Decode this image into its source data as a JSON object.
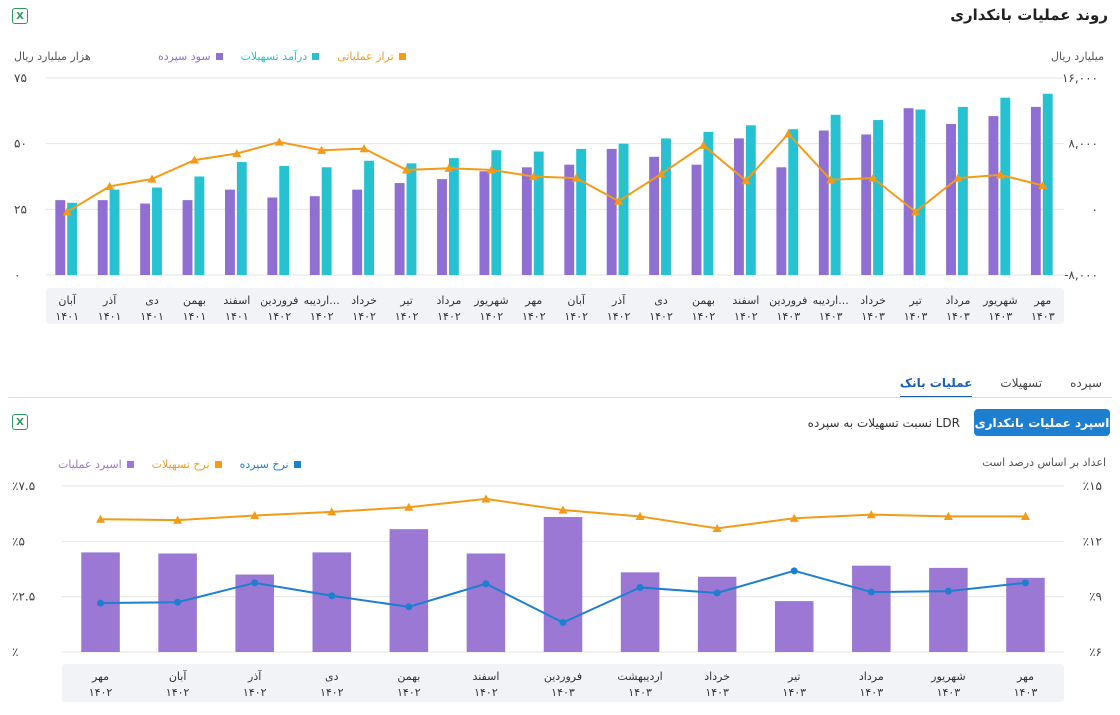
{
  "top": {
    "title": "روند عملیات بانکداری",
    "unit_left": "هزار میلیارد ریال",
    "unit_right": "میلیارد ریال",
    "legend": [
      {
        "label": "تراز عملیاتی",
        "color": "#f29b18"
      },
      {
        "label": "درآمد تسهیلات",
        "color": "#26c2d1"
      },
      {
        "label": "سود سپرده",
        "color": "#8f6fd1"
      }
    ],
    "excel_icon": "excel-icon"
  },
  "tabs": [
    "سپرده",
    "تسهیلات",
    "عملیات بانک"
  ],
  "active_tab": "عملیات بانک",
  "bottom": {
    "primary_button": "اسپرد عملیات بانکداری",
    "secondary_button": "نسبت تسهیلات به سپرده LDR",
    "unit": "اعداد بر اساس درصد است",
    "legend": [
      {
        "label": "اسپرد عملیات",
        "color": "#9a78d4"
      },
      {
        "label": "نرخ تسهیلات",
        "color": "#f29b18"
      },
      {
        "label": "نرخ سپرده",
        "color": "#1e7fd1"
      }
    ]
  },
  "chart_data": [
    {
      "type": "bar",
      "title": "روند عملیات بانکداری",
      "categories": [
        [
          "آبان",
          "۱۴۰۱"
        ],
        [
          "آذر",
          "۱۴۰۱"
        ],
        [
          "دی",
          "۱۴۰۱"
        ],
        [
          "بهمن",
          "۱۴۰۱"
        ],
        [
          "اسفند",
          "۱۴۰۱"
        ],
        [
          "فروردین",
          "۱۴۰۲"
        ],
        [
          "اردیبه...",
          "۱۴۰۲"
        ],
        [
          "خرداد",
          "۱۴۰۲"
        ],
        [
          "تیر",
          "۱۴۰۲"
        ],
        [
          "مرداد",
          "۱۴۰۲"
        ],
        [
          "شهریور",
          "۱۴۰۲"
        ],
        [
          "مهر",
          "۱۴۰۲"
        ],
        [
          "آبان",
          "۱۴۰۲"
        ],
        [
          "آذر",
          "۱۴۰۲"
        ],
        [
          "دی",
          "۱۴۰۲"
        ],
        [
          "بهمن",
          "۱۴۰۲"
        ],
        [
          "اسفند",
          "۱۴۰۲"
        ],
        [
          "فروردین",
          "۱۴۰۳"
        ],
        [
          "اردیبه...",
          "۱۴۰۳"
        ],
        [
          "خرداد",
          "۱۴۰۳"
        ],
        [
          "تیر",
          "۱۴۰۳"
        ],
        [
          "مرداد",
          "۱۴۰۳"
        ],
        [
          "شهریور",
          "۱۴۰۳"
        ],
        [
          "مهر",
          "۱۴۰۳"
        ]
      ],
      "series": [
        {
          "name": "سود سپرده",
          "kind": "bar",
          "axis": "left",
          "color": "#8f6fd1",
          "values": [
            28.5,
            28.5,
            27.2,
            28.5,
            32.5,
            29.5,
            30,
            32.5,
            35,
            36.5,
            39.5,
            41,
            42,
            48,
            45,
            42,
            52,
            41,
            55,
            53.5,
            63.5,
            57.5,
            60.5,
            64
          ]
        },
        {
          "name": "درآمد تسهیلات",
          "kind": "bar",
          "axis": "left",
          "color": "#26c2d1",
          "values": [
            27.5,
            32.5,
            33.3,
            37.5,
            43,
            41.5,
            41,
            43.5,
            42.5,
            44.5,
            47.5,
            47,
            48,
            50,
            52,
            54.5,
            57,
            55.5,
            61,
            59,
            63,
            64,
            67.5,
            69
          ]
        },
        {
          "name": "تراز عملیاتی",
          "kind": "line",
          "axis": "right",
          "color": "#f29b18",
          "values": [
            -300,
            2800,
            3700,
            6000,
            6800,
            8200,
            7200,
            7400,
            4800,
            5000,
            4800,
            4000,
            3800,
            1000,
            4300,
            7800,
            3500,
            9200,
            3600,
            3800,
            -300,
            3800,
            4200,
            2900
          ]
        }
      ],
      "ylim_left": [
        0,
        75
      ],
      "yticks_left": [
        "۰",
        "۲۵",
        "۵۰",
        "۷۵"
      ],
      "ylim_right": [
        -8000,
        16000
      ],
      "yticks_right": [
        "-۸,۰۰۰",
        "۰",
        "۸,۰۰۰",
        "۱۶,۰۰۰"
      ],
      "grid": true
    },
    {
      "type": "bar",
      "title": "اسپرد عملیات بانکداری",
      "categories": [
        [
          "مهر",
          "۱۴۰۲"
        ],
        [
          "آبان",
          "۱۴۰۲"
        ],
        [
          "آذر",
          "۱۴۰۲"
        ],
        [
          "دی",
          "۱۴۰۲"
        ],
        [
          "بهمن",
          "۱۴۰۲"
        ],
        [
          "اسفند",
          "۱۴۰۲"
        ],
        [
          "فروردین",
          "۱۴۰۳"
        ],
        [
          "اردیبهشت",
          "۱۴۰۳"
        ],
        [
          "خرداد",
          "۱۴۰۳"
        ],
        [
          "تیر",
          "۱۴۰۳"
        ],
        [
          "مرداد",
          "۱۴۰۳"
        ],
        [
          "شهریور",
          "۱۴۰۳"
        ],
        [
          "مهر",
          "۱۴۰۳"
        ]
      ],
      "series": [
        {
          "name": "اسپرد عملیات",
          "kind": "bar",
          "axis": "left",
          "color": "#9a78d4",
          "values": [
            4.5,
            4.45,
            3.5,
            4.5,
            5.55,
            4.45,
            6.1,
            3.6,
            3.4,
            2.3,
            3.9,
            3.8,
            3.35
          ]
        },
        {
          "name": "نرخ تسهیلات",
          "kind": "line",
          "axis": "right",
          "color": "#f29b18",
          "values": [
            13.2,
            13.15,
            13.4,
            13.6,
            13.85,
            14.3,
            13.7,
            13.35,
            12.7,
            13.25,
            13.45,
            13.35,
            13.35
          ]
        },
        {
          "name": "نرخ سپرده",
          "kind": "line",
          "axis": "right",
          "color": "#1e7fd1",
          "values": [
            8.65,
            8.7,
            9.75,
            9.05,
            8.45,
            9.7,
            7.6,
            9.5,
            9.2,
            10.4,
            9.25,
            9.3,
            9.75
          ]
        }
      ],
      "ylim_left": [
        0,
        7.5
      ],
      "yticks_left": [
        "٪",
        "٪۲.۵",
        "٪۵",
        "٪۷.۵"
      ],
      "ylim_right": [
        6,
        15
      ],
      "yticks_right": [
        "٪۶",
        "٪۹",
        "٪۱۲",
        "٪۱۵"
      ],
      "grid": true
    }
  ]
}
